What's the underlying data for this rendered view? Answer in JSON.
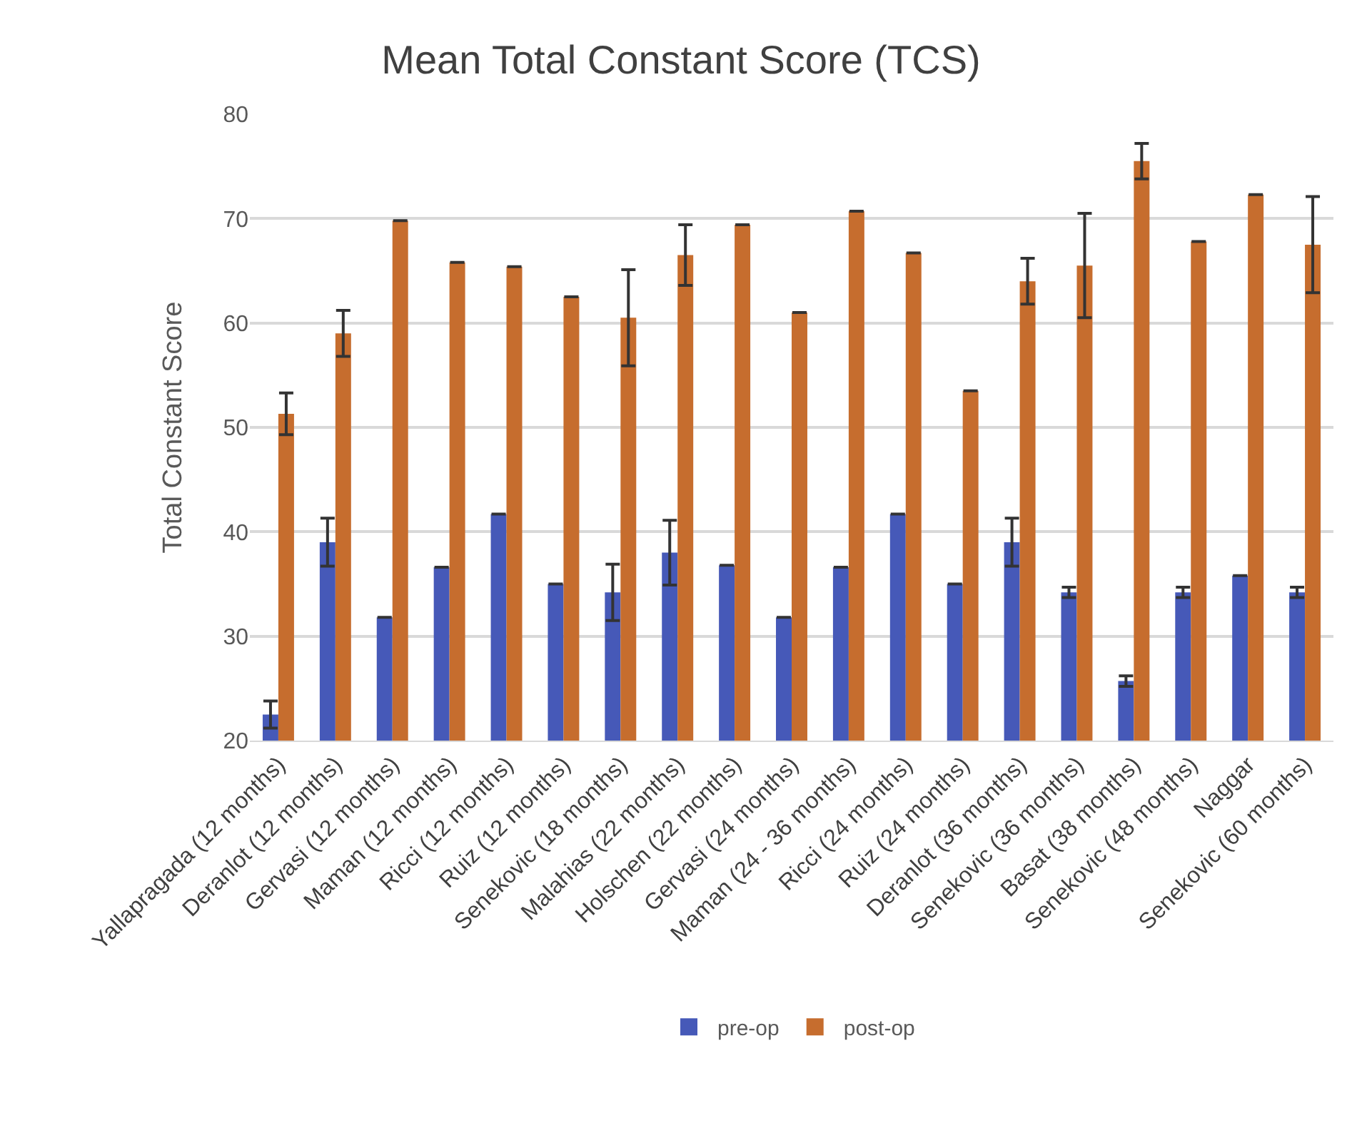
{
  "chart_data": {
    "type": "bar",
    "title": "Mean Total Constant Score (TCS)",
    "ylabel": "Total Constant Score",
    "categories": [
      "Yallapragada (12 months)",
      "Deranlot (12 months)",
      "Gervasi (12 months)",
      "Maman (12 months)",
      "Ricci (12 months)",
      "Ruiz (12 months)",
      "Senekovic (18 months)",
      "Malahias (22 months)",
      "Holschen (22 months)",
      "Gervasi (24 months)",
      "Maman (24 - 36 months)",
      "Ricci (24 months)",
      "Ruiz (24 months)",
      "Deranlot (36 months)",
      "Senekovic (36 months)",
      "Basat (38 months)",
      "Senekovic (48 months)",
      "Naggar",
      "Senekovic (60 months)"
    ],
    "series": [
      {
        "name": "pre-op",
        "color": "#4659b8",
        "values": [
          22.5,
          39,
          31.8,
          36.6,
          41.7,
          35,
          34.2,
          38,
          36.8,
          31.8,
          36.6,
          41.7,
          35,
          39,
          34.2,
          25.7,
          34.2,
          35.8,
          34.2
        ],
        "errors": [
          1.3,
          2.3,
          null,
          null,
          null,
          null,
          2.7,
          3.1,
          null,
          null,
          null,
          null,
          null,
          2.3,
          0.5,
          0.5,
          0.5,
          null,
          0.5
        ]
      },
      {
        "name": "post-op",
        "color": "#c66d2e",
        "values": [
          51.3,
          59,
          69.8,
          65.8,
          65.4,
          62.5,
          60.5,
          66.5,
          69.4,
          61,
          70.7,
          66.7,
          53.5,
          64,
          65.5,
          75.5,
          67.8,
          72.3,
          67.5
        ],
        "errors": [
          2,
          2.2,
          null,
          null,
          null,
          null,
          4.6,
          2.9,
          null,
          null,
          null,
          null,
          null,
          2.2,
          5,
          1.7,
          null,
          null,
          4.6
        ]
      }
    ],
    "ylim": [
      20,
      80
    ],
    "yticks": [
      20,
      30,
      40,
      50,
      60,
      70,
      80
    ],
    "grid": "y",
    "legend": "bottom"
  }
}
